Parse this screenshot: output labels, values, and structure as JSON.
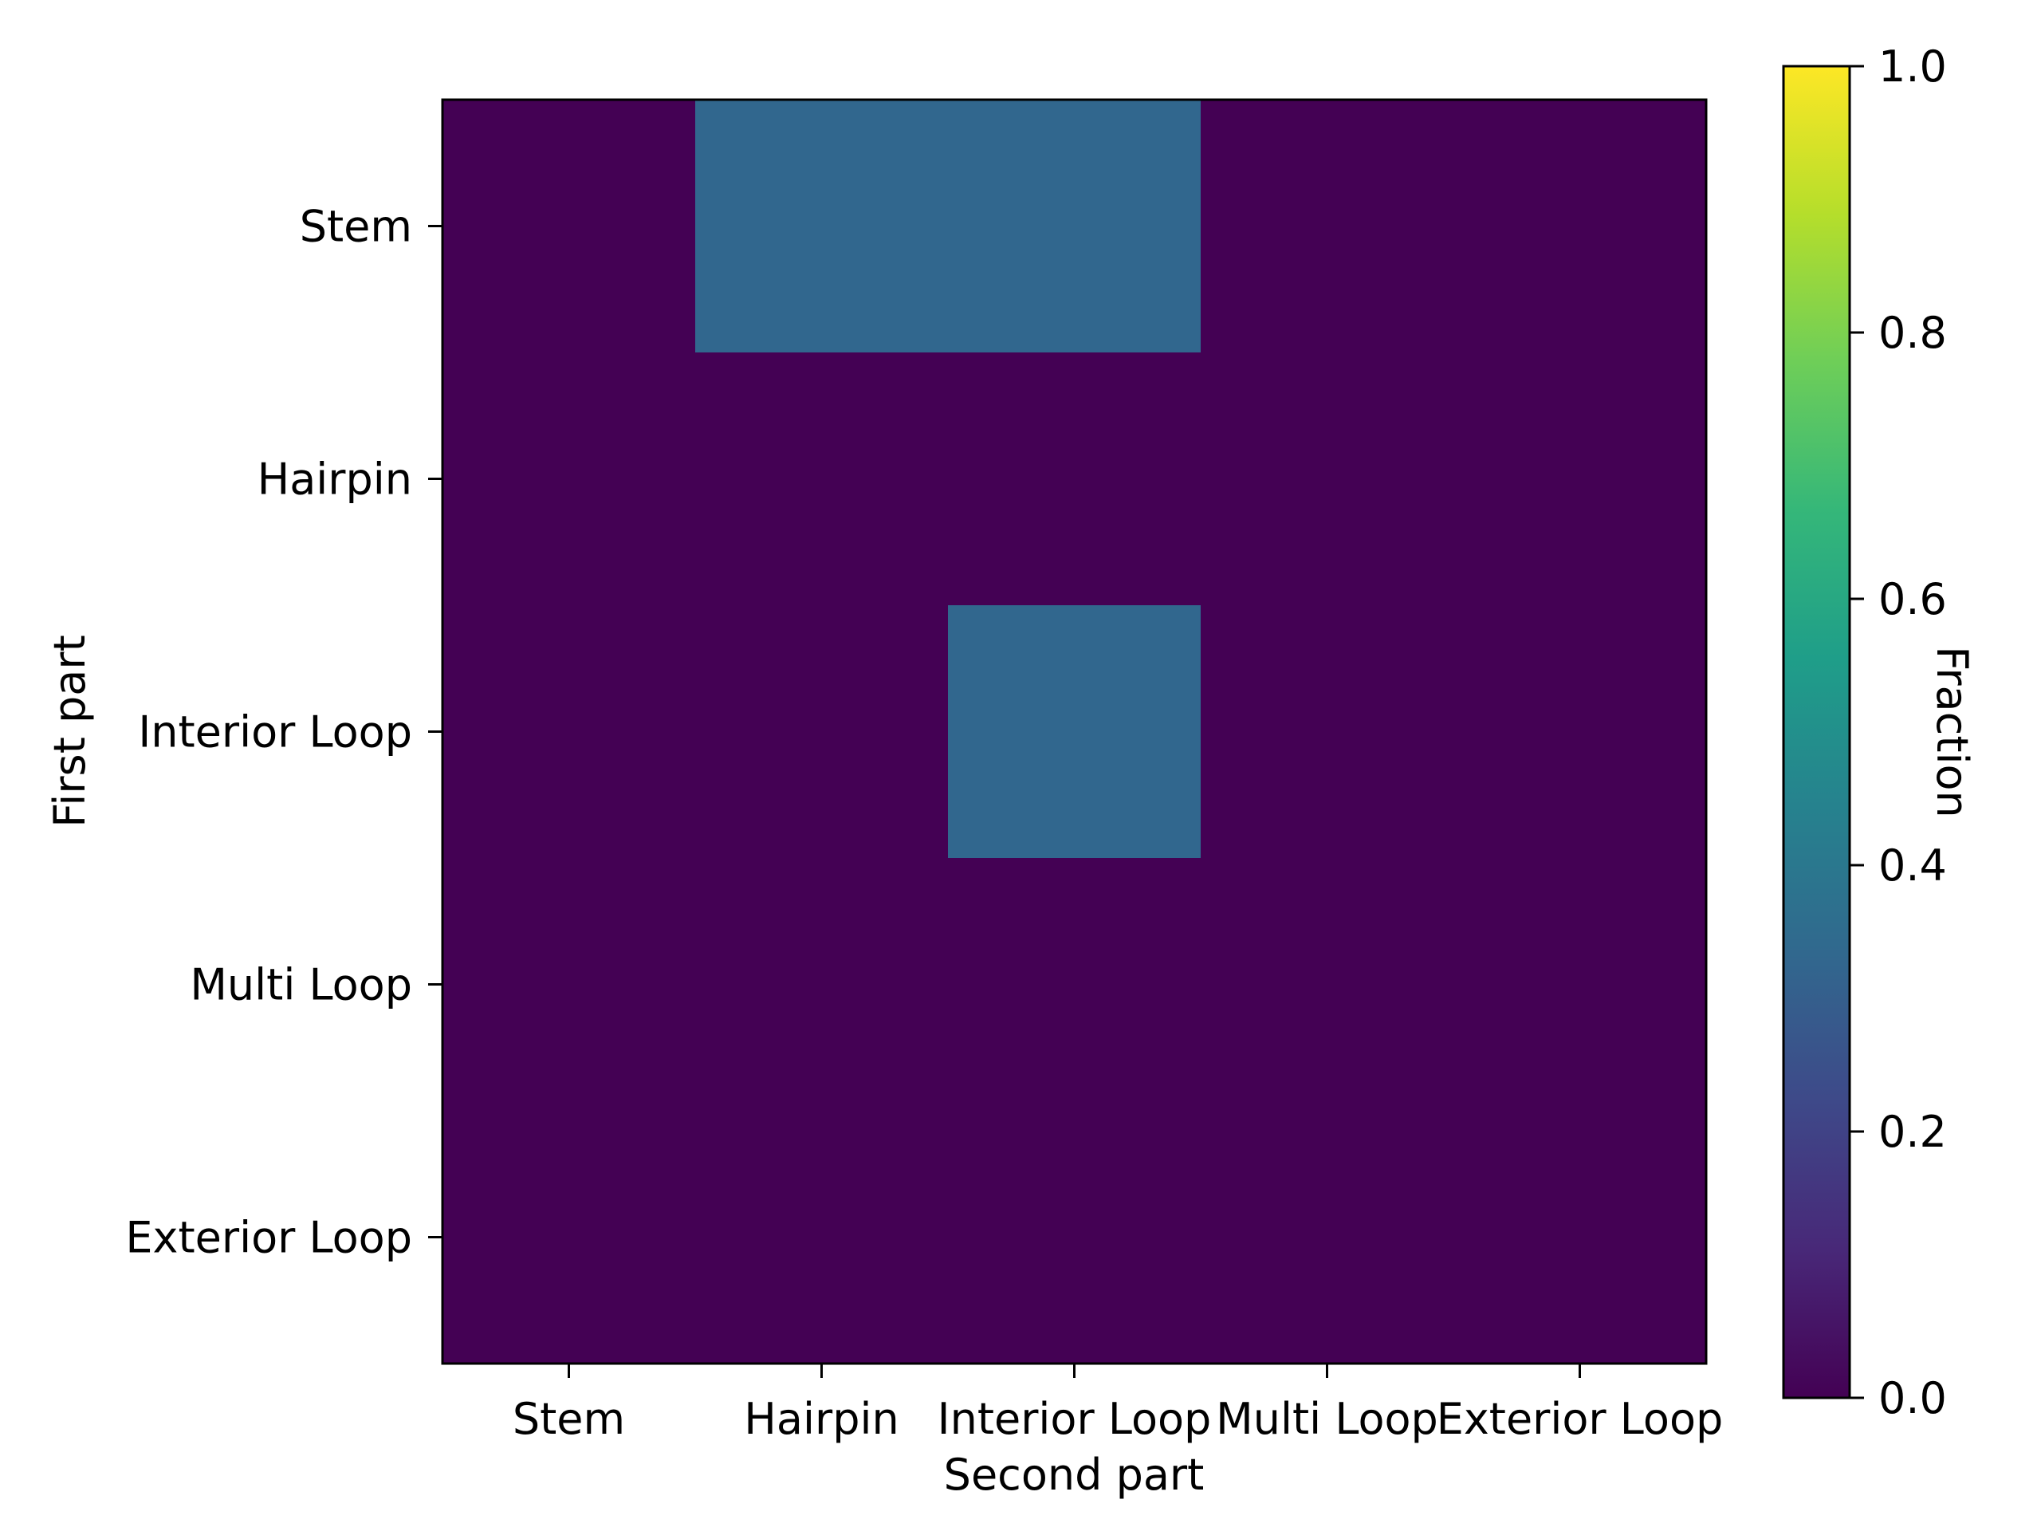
{
  "chart_data": {
    "type": "heatmap",
    "xlabel": "Second part",
    "ylabel": "First part",
    "x_categories": [
      "Stem",
      "Hairpin",
      "Interior Loop",
      "Multi Loop",
      "Exterior Loop"
    ],
    "y_categories": [
      "Stem",
      "Hairpin",
      "Interior Loop",
      "Multi Loop",
      "Exterior Loop"
    ],
    "values": [
      [
        0.0,
        0.33,
        0.33,
        0.0,
        0.0
      ],
      [
        0.0,
        0.0,
        0.0,
        0.0,
        0.0
      ],
      [
        0.0,
        0.0,
        0.33,
        0.0,
        0.0
      ],
      [
        0.0,
        0.0,
        0.0,
        0.0,
        0.0
      ],
      [
        0.0,
        0.0,
        0.0,
        0.0,
        0.0
      ]
    ],
    "colorbar": {
      "label": "Fraction",
      "range": [
        0.0,
        1.0
      ],
      "ticks": [
        0.0,
        0.2,
        0.4,
        0.6,
        0.8,
        1.0
      ],
      "tick_labels": [
        "0.0",
        "0.2",
        "0.4",
        "0.6",
        "0.8",
        "1.0"
      ],
      "colormap": "viridis"
    },
    "grid": false
  },
  "colors": {
    "viridis": [
      "#440154",
      "#482878",
      "#3e4989",
      "#31688e",
      "#26828e",
      "#1f9e89",
      "#35b779",
      "#6ece58",
      "#b5de2b",
      "#fde725"
    ]
  }
}
